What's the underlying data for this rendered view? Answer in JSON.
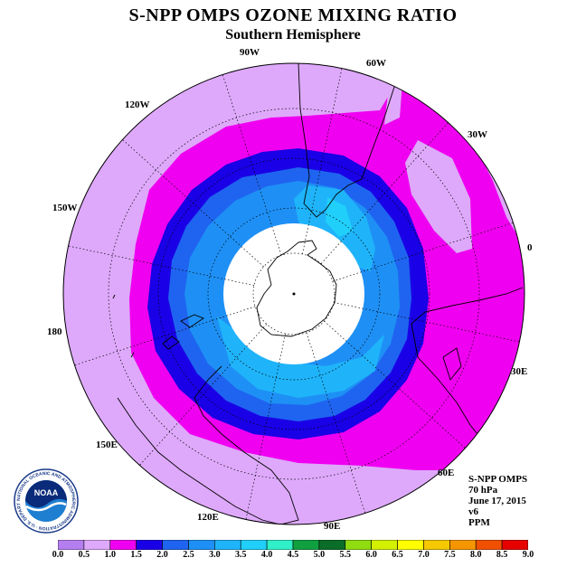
{
  "title": "S-NPP OMPS OZONE MIXING RATIO",
  "subtitle": "Southern Hemisphere",
  "longitude_labels": [
    "90W",
    "60W",
    "30W",
    "0",
    "30E",
    "60E",
    "90E",
    "120E",
    "150E",
    "180",
    "150W",
    "120W"
  ],
  "info": {
    "instrument": "S-NPP OMPS",
    "pressure": "70 hPa",
    "date": "June 17, 2015",
    "version": "v6",
    "unit": "PPM"
  },
  "colorbar": {
    "ticks": [
      "0.0",
      "0.5",
      "1.0",
      "1.5",
      "2.0",
      "2.5",
      "3.0",
      "3.5",
      "4.0",
      "4.5",
      "5.0",
      "5.5",
      "6.0",
      "6.5",
      "7.0",
      "7.5",
      "8.0",
      "8.5",
      "9.0"
    ],
    "colors": [
      "#b57ef0",
      "#dea9fb",
      "#f000f0",
      "#1a00e6",
      "#1f64f0",
      "#1e90f5",
      "#1fb4fa",
      "#20d0fa",
      "#30f0c8",
      "#10a040",
      "#0a6e28",
      "#90dc10",
      "#d2f000",
      "#ffff00",
      "#f5c800",
      "#f59600",
      "#f05000",
      "#e60000",
      "#8c5a3c"
    ]
  },
  "logo": {
    "text": "NOAA",
    "ring_text": "NATIONAL OCEANIC AND ATMOSPHERIC ADMINISTRATION · U.S. DEPARTMENT OF COMMERCE ·"
  },
  "map": {
    "colors": {
      "outer_band": "#dea9fb",
      "high_band": "#f000f0",
      "vortex_edge": "#1a00e6",
      "vortex_mid": "#1f64f0",
      "vortex_inner": "#1e90f5",
      "vortex_core": "#1fb4fa",
      "vortex_peak": "#20d0fa",
      "no_data": "#ffffff"
    }
  }
}
